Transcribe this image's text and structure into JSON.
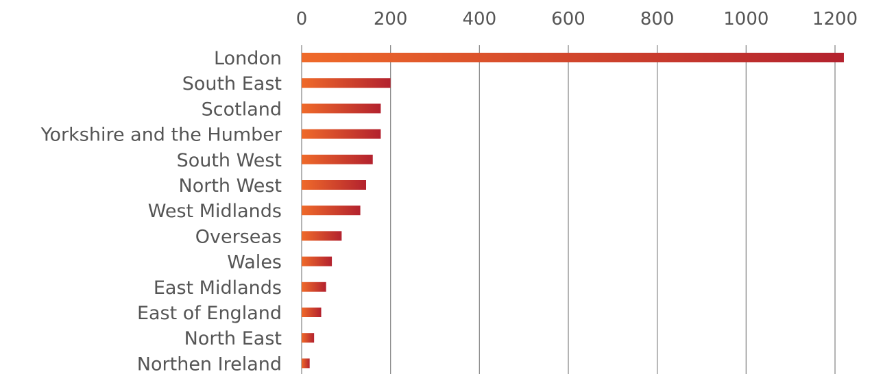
{
  "chart_data": {
    "type": "bar",
    "orientation": "horizontal",
    "categories": [
      "London",
      "South East",
      "Scotland",
      "Yorkshire and the Humber",
      "South West",
      "North West",
      "West Midlands",
      "Overseas",
      "Wales",
      "East Midlands",
      "East of England",
      "North East",
      "Northen Ireland"
    ],
    "values": [
      1220,
      200,
      178,
      178,
      160,
      145,
      132,
      90,
      68,
      55,
      44,
      28,
      18
    ],
    "xlim": [
      0,
      1200
    ],
    "xticks": [
      "0",
      "200",
      "400",
      "600",
      "800",
      "1000",
      "1200"
    ],
    "x_axis_position": "top",
    "grid": true,
    "legend": "none",
    "colors": {
      "bar_start": "#ef6a2a",
      "bar_end": "#b3222e",
      "gridline": "#8a8a8a",
      "text": "#555555"
    }
  }
}
